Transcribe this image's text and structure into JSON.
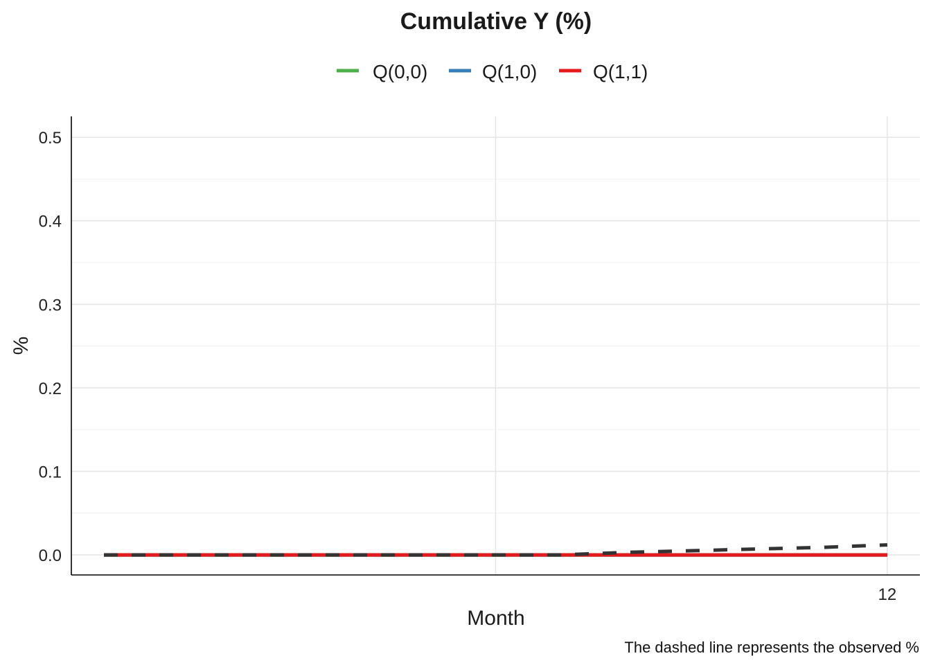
{
  "chart_data": {
    "type": "line",
    "title": "Cumulative Y (%)",
    "xlabel": "Month",
    "ylabel": "%",
    "caption": "The dashed line represents the observed %",
    "xlim": [
      -0.5,
      12.5
    ],
    "ylim": [
      -0.024,
      0.525
    ],
    "x_ticks": [
      12
    ],
    "y_ticks": [
      0.0,
      0.1,
      0.2,
      0.3,
      0.4,
      0.5
    ],
    "y_tick_labels": [
      "0.0",
      "0.1",
      "0.2",
      "0.3",
      "0.4",
      "0.5"
    ],
    "x_tick_labels": [
      "12"
    ],
    "legend_position": "top-center",
    "series": [
      {
        "name": "Q(0,0)",
        "label": "Q(0,0)",
        "color": "#4DAF4A",
        "style": "solid",
        "x": [
          0,
          1,
          2,
          3,
          4,
          5,
          6,
          7,
          8,
          9,
          10,
          11,
          12
        ],
        "values": [
          0,
          0,
          0,
          0,
          0,
          0,
          0,
          0,
          0,
          0,
          0,
          0,
          0
        ]
      },
      {
        "name": "Q(1,0)",
        "label": "Q(1,0)",
        "color": "#377EB8",
        "style": "solid",
        "x": [
          0,
          1,
          2,
          3,
          4,
          5,
          6,
          7,
          8,
          9,
          10,
          11,
          12
        ],
        "values": [
          0,
          0,
          0,
          0,
          0,
          0,
          0,
          0,
          0,
          0,
          0,
          0,
          0
        ]
      },
      {
        "name": "Q(1,1)",
        "label": "Q(1,1)",
        "color": "#E41A1C",
        "style": "solid",
        "x": [
          0,
          1,
          2,
          3,
          4,
          5,
          6,
          7,
          8,
          9,
          10,
          11,
          12
        ],
        "values": [
          0,
          0,
          0,
          0,
          0,
          0,
          0,
          0,
          0,
          0,
          0,
          0,
          0
        ]
      },
      {
        "name": "Observed",
        "color": "#333333",
        "style": "dashed",
        "x": [
          0,
          1,
          2,
          3,
          4,
          5,
          6,
          7,
          8,
          9,
          10,
          11,
          12
        ],
        "values": [
          0,
          0,
          0,
          0,
          0,
          0,
          0,
          0,
          0.003,
          0.005,
          0.007,
          0.009,
          0.012
        ]
      }
    ]
  }
}
